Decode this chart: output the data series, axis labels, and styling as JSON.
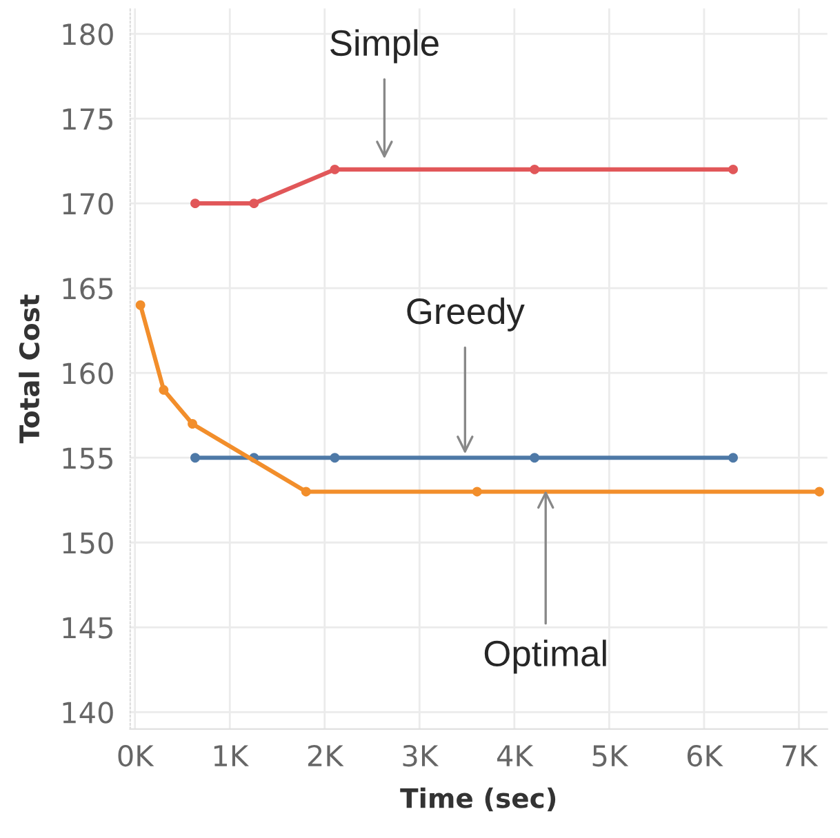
{
  "chart_data": {
    "type": "line",
    "xlabel": "Time (sec)",
    "ylabel": "Total Cost",
    "series": [
      {
        "color": "#e15759",
        "x": [
          635,
          1255,
          2107,
          4213,
          6306
        ],
        "values": [
          170,
          170,
          172,
          172,
          172
        ]
      },
      {
        "color": "#4e79a7",
        "x": [
          635,
          1255,
          2107,
          4213,
          6306
        ],
        "values": [
          155,
          155,
          155,
          155,
          155
        ]
      },
      {
        "color": "#f28e2b",
        "x": [
          58,
          303,
          606,
          1804,
          3607,
          7215
        ],
        "values": [
          164,
          159,
          157,
          153,
          153,
          153
        ]
      }
    ],
    "xlim": [
      -50,
      7300
    ],
    "ylim": [
      139,
      181.5
    ],
    "xticks": [
      {
        "value": 0,
        "label": "0K"
      },
      {
        "value": 1000,
        "label": "1K"
      },
      {
        "value": 2000,
        "label": "2K"
      },
      {
        "value": 3000,
        "label": "3K"
      },
      {
        "value": 4000,
        "label": "4K"
      },
      {
        "value": 5000,
        "label": "5K"
      },
      {
        "value": 6000,
        "label": "6K"
      },
      {
        "value": 7000,
        "label": "7K"
      }
    ],
    "yticks": [
      140,
      145,
      150,
      155,
      160,
      165,
      170,
      175,
      180
    ],
    "annotations": [
      {
        "text": "Simple",
        "x": 2630,
        "y": 172.4
      },
      {
        "text": "Greedy",
        "x": 3480,
        "y": 155
      },
      {
        "text": "Optimal",
        "x": 4330,
        "y": 153.3
      }
    ],
    "grid": true,
    "marker": "circle",
    "line_style": "solid"
  }
}
